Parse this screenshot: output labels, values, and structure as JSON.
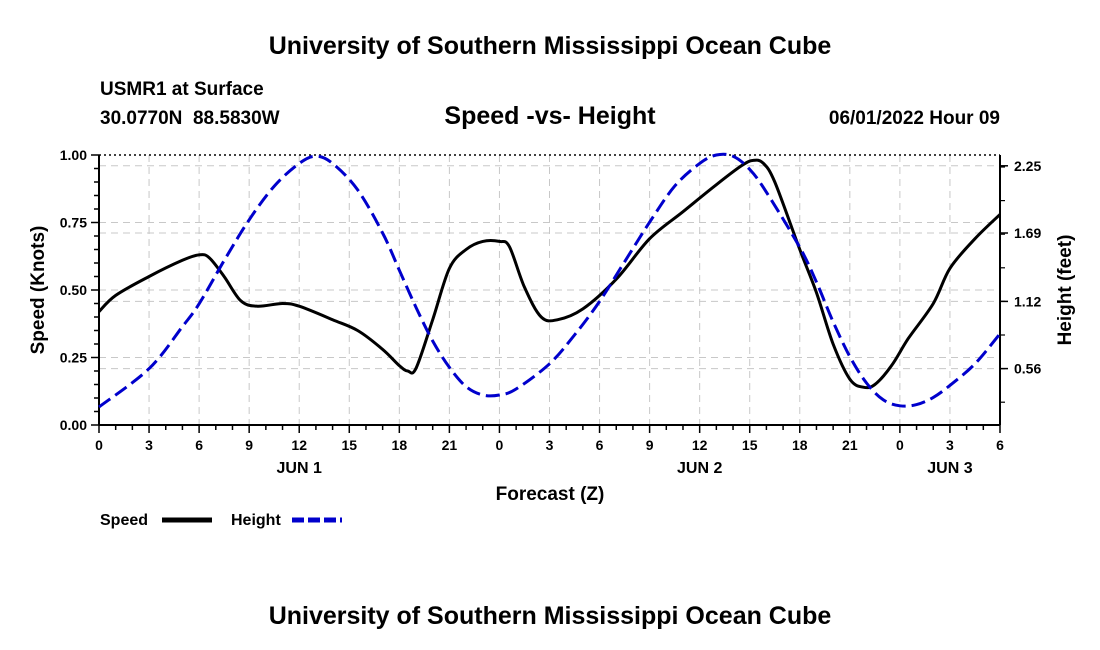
{
  "header": {
    "title": "University of Southern Mississippi Ocean Cube",
    "station": "USMR1 at Surface",
    "coords": "30.0770N  88.5830W",
    "datetime": "06/01/2022 Hour 09"
  },
  "footer": {
    "title": "University of Southern Mississippi Ocean Cube"
  },
  "chart_data": {
    "type": "line",
    "title": "Speed -vs- Height",
    "xlabel": "Forecast (Z)",
    "ylabel_left": "Speed (Knots)",
    "ylabel_right": "Height (feet)",
    "x_unit": "hours from 00Z Jun 1",
    "xlim": [
      0,
      54
    ],
    "ylim_left": [
      0,
      1.0
    ],
    "ylim_right": [
      0.09,
      2.34
    ],
    "x_ticks": [
      {
        "x": 0,
        "label": "0"
      },
      {
        "x": 3,
        "label": "3"
      },
      {
        "x": 6,
        "label": "6"
      },
      {
        "x": 9,
        "label": "9"
      },
      {
        "x": 12,
        "label": "12"
      },
      {
        "x": 15,
        "label": "15"
      },
      {
        "x": 18,
        "label": "18"
      },
      {
        "x": 21,
        "label": "21"
      },
      {
        "x": 24,
        "label": "0"
      },
      {
        "x": 27,
        "label": "3"
      },
      {
        "x": 30,
        "label": "6"
      },
      {
        "x": 33,
        "label": "9"
      },
      {
        "x": 36,
        "label": "12"
      },
      {
        "x": 39,
        "label": "15"
      },
      {
        "x": 42,
        "label": "18"
      },
      {
        "x": 45,
        "label": "21"
      },
      {
        "x": 48,
        "label": "0"
      },
      {
        "x": 51,
        "label": "3"
      },
      {
        "x": 54,
        "label": "6"
      }
    ],
    "day_labels": [
      {
        "x": 12,
        "label": "JUN 1"
      },
      {
        "x": 36,
        "label": "JUN 2"
      },
      {
        "x": 51,
        "label": "JUN 3"
      }
    ],
    "y_ticks_left": [
      {
        "v": 0,
        "label": "0.00"
      },
      {
        "v": 0.25,
        "label": "0.25"
      },
      {
        "v": 0.5,
        "label": "0.50"
      },
      {
        "v": 0.75,
        "label": "0.75"
      },
      {
        "v": 1.0,
        "label": "1.00"
      }
    ],
    "y_ticks_right": [
      {
        "v": 0.56,
        "label": "0.56"
      },
      {
        "v": 1.12,
        "label": "1.12"
      },
      {
        "v": 1.69,
        "label": "1.69"
      },
      {
        "v": 2.25,
        "label": "2.25"
      }
    ],
    "series": [
      {
        "name": "Speed",
        "axis": "left",
        "color": "#000000",
        "style": "solid",
        "points": [
          [
            0,
            0.42
          ],
          [
            1,
            0.48
          ],
          [
            3,
            0.55
          ],
          [
            5,
            0.61
          ],
          [
            6,
            0.63
          ],
          [
            6.6,
            0.62
          ],
          [
            7.5,
            0.55
          ],
          [
            8.5,
            0.46
          ],
          [
            9.5,
            0.44
          ],
          [
            11,
            0.45
          ],
          [
            12,
            0.44
          ],
          [
            14,
            0.39
          ],
          [
            15.5,
            0.35
          ],
          [
            17,
            0.28
          ],
          [
            18,
            0.22
          ],
          [
            18.5,
            0.2
          ],
          [
            19,
            0.21
          ],
          [
            20,
            0.39
          ],
          [
            21,
            0.58
          ],
          [
            22,
            0.65
          ],
          [
            23,
            0.68
          ],
          [
            24,
            0.68
          ],
          [
            24.6,
            0.66
          ],
          [
            25.5,
            0.51
          ],
          [
            26.5,
            0.4
          ],
          [
            27.5,
            0.39
          ],
          [
            29,
            0.43
          ],
          [
            31,
            0.54
          ],
          [
            33,
            0.69
          ],
          [
            35,
            0.79
          ],
          [
            37,
            0.89
          ],
          [
            38.5,
            0.96
          ],
          [
            39.2,
            0.98
          ],
          [
            39.8,
            0.97
          ],
          [
            40.5,
            0.9
          ],
          [
            42,
            0.65
          ],
          [
            43,
            0.49
          ],
          [
            44,
            0.3
          ],
          [
            45,
            0.17
          ],
          [
            45.8,
            0.14
          ],
          [
            46.5,
            0.15
          ],
          [
            47.5,
            0.22
          ],
          [
            48.5,
            0.32
          ],
          [
            50,
            0.45
          ],
          [
            51,
            0.58
          ],
          [
            52.5,
            0.69
          ],
          [
            54,
            0.78
          ]
        ]
      },
      {
        "name": "Height",
        "axis": "right",
        "color": "#0000cc",
        "style": "dashed",
        "points": [
          [
            0,
            0.24
          ],
          [
            3,
            0.56
          ],
          [
            5,
            0.91
          ],
          [
            6,
            1.1
          ],
          [
            7.5,
            1.46
          ],
          [
            9,
            1.8
          ],
          [
            10.5,
            2.08
          ],
          [
            12,
            2.27
          ],
          [
            13,
            2.33
          ],
          [
            14,
            2.27
          ],
          [
            15.5,
            2.05
          ],
          [
            17,
            1.69
          ],
          [
            18,
            1.38
          ],
          [
            19,
            1.07
          ],
          [
            20,
            0.79
          ],
          [
            21,
            0.57
          ],
          [
            22,
            0.41
          ],
          [
            23,
            0.34
          ],
          [
            24,
            0.34
          ],
          [
            25,
            0.39
          ],
          [
            27,
            0.6
          ],
          [
            28.5,
            0.84
          ],
          [
            30,
            1.12
          ],
          [
            31.5,
            1.45
          ],
          [
            33,
            1.78
          ],
          [
            34.5,
            2.08
          ],
          [
            36,
            2.27
          ],
          [
            37,
            2.34
          ],
          [
            38,
            2.33
          ],
          [
            39,
            2.22
          ],
          [
            40,
            2.03
          ],
          [
            42,
            1.57
          ],
          [
            43,
            1.28
          ],
          [
            44,
            0.95
          ],
          [
            45,
            0.66
          ],
          [
            46,
            0.44
          ],
          [
            47,
            0.3
          ],
          [
            48,
            0.25
          ],
          [
            49,
            0.26
          ],
          [
            50,
            0.32
          ],
          [
            51,
            0.42
          ],
          [
            52.5,
            0.6
          ],
          [
            54,
            0.85
          ]
        ]
      }
    ],
    "legend": [
      {
        "label": "Speed",
        "color": "#000000",
        "style": "solid"
      },
      {
        "label": "Height",
        "color": "#0000cc",
        "style": "dashed"
      }
    ]
  }
}
